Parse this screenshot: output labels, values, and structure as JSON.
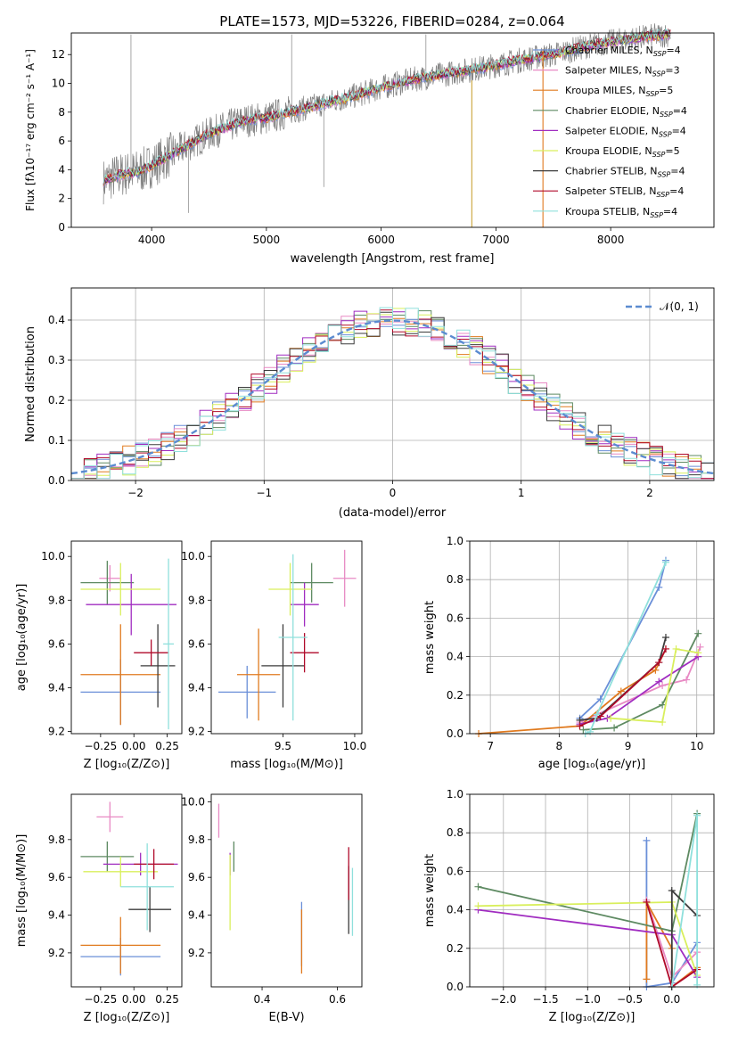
{
  "colors": [
    "#6a8fd8",
    "#e88ac4",
    "#e07a1f",
    "#5e8a62",
    "#a02cc0",
    "#d9ef5c",
    "#3b3b3b",
    "#b00a2a",
    "#8fe0dc"
  ],
  "chart_data": [
    {
      "id": "spectrum",
      "type": "line",
      "title": "PLATE=1573, MJD=53226, FIBERID=0284, z=0.064",
      "xlabel": "wavelength [Angstrom, rest frame]",
      "ylabel": "Flux [fλ10⁻¹⁷ erg cm⁻² s⁻¹ A⁻¹]",
      "xlim": [
        3300,
        8900
      ],
      "ylim": [
        0,
        13.5
      ],
      "xticks": [
        4000,
        5000,
        6000,
        7000,
        8000
      ],
      "yticks": [
        0,
        2,
        4,
        6,
        8,
        10,
        12
      ],
      "grid": false,
      "legend_position": "right",
      "legend": [
        "Chabrier MILES, N_SSP=4",
        "Salpeter MILES, N_SSP=3",
        "Kroupa MILES, N_SSP=5",
        "Chabrier ELODIE, N_SSP=4",
        "Salpeter ELODIE, N_SSP=4",
        "Kroupa ELODIE, N_SSP=5",
        "Chabrier STELIB, N_SSP=4",
        "Salpeter STELIB, N_SSP=4",
        "Kroupa STELIB, N_SSP=4"
      ],
      "data_trend": {
        "x": [
          3580,
          3700,
          3900,
          4000,
          4200,
          4500,
          4800,
          5000,
          5200,
          5500,
          5800,
          6000,
          6300,
          6600,
          6900,
          7200,
          7500,
          7800,
          8100,
          8400,
          8500
        ],
        "y": [
          3.2,
          3.6,
          3.9,
          4.3,
          5.2,
          6.5,
          7.4,
          7.6,
          8.0,
          8.6,
          9.2,
          9.7,
          10.3,
          10.7,
          11.1,
          11.6,
          12.0,
          12.6,
          13.0,
          13.3,
          13.4
        ]
      }
    },
    {
      "id": "residual-hist",
      "type": "step",
      "xlabel": "(data-model)/error",
      "ylabel": "Normed distribution",
      "xlim": [
        -2.5,
        2.5
      ],
      "ylim": [
        0,
        0.48
      ],
      "xticks": [
        -2,
        -1,
        0,
        1,
        2
      ],
      "yticks": [
        0.0,
        0.1,
        0.2,
        0.3,
        0.4
      ],
      "grid": true,
      "legend_position": "top-right",
      "legend": [
        "𝒩(0, 1)"
      ]
    },
    {
      "id": "age-vs-Z",
      "type": "errorbar",
      "xlabel": "Z [log₁₀(Z/Z⊙)]",
      "ylabel": "age  [log₁₀(age/yr)]",
      "xlim": [
        -0.47,
        0.36
      ],
      "ylim": [
        9.19,
        10.07
      ],
      "xticks": [
        -0.25,
        0.0,
        0.25
      ],
      "xticklabels": [
        "−0.25",
        "0.00",
        "0.25"
      ],
      "yticks": [
        9.2,
        9.4,
        9.6,
        9.8,
        10.0
      ],
      "points": [
        {
          "x": -0.1,
          "xerr": 0.3,
          "y": 9.38,
          "yerr": 0.15
        },
        {
          "x": -0.18,
          "xerr": 0.08,
          "y": 9.9,
          "yerr": 0.06
        },
        {
          "x": -0.1,
          "xerr": 0.3,
          "y": 9.46,
          "yerr": 0.23
        },
        {
          "x": -0.2,
          "xerr": 0.2,
          "y": 9.88,
          "yerr": 0.1
        },
        {
          "x": -0.02,
          "xerr": 0.34,
          "y": 9.78,
          "yerr": 0.14
        },
        {
          "x": -0.1,
          "xerr": 0.3,
          "y": 9.85,
          "yerr": 0.12
        },
        {
          "x": 0.18,
          "xerr": 0.13,
          "y": 9.5,
          "yerr": 0.19
        },
        {
          "x": 0.13,
          "xerr": 0.13,
          "y": 9.56,
          "yerr": 0.06
        },
        {
          "x": 0.26,
          "xerr": 0.04,
          "y": 9.6,
          "yerr": 0.39
        }
      ]
    },
    {
      "id": "age-vs-mass",
      "type": "errorbar",
      "xlabel": "mass [log₁₀(M/M⊙)]",
      "ylabel": "",
      "xlim": [
        9.0,
        10.05
      ],
      "ylim": [
        9.19,
        10.07
      ],
      "xticks": [
        9.5,
        10.0
      ],
      "xticklabels": [
        "9.5",
        "10.0"
      ],
      "yticks": [
        9.2,
        9.4,
        9.6,
        9.8,
        10.0
      ],
      "points": [
        {
          "x": 9.25,
          "xerr": 0.2,
          "y": 9.38,
          "yerr": 0.12
        },
        {
          "x": 9.93,
          "xerr": 0.08,
          "y": 9.9,
          "yerr": 0.13
        },
        {
          "x": 9.33,
          "xerr": 0.15,
          "y": 9.46,
          "yerr": 0.21
        },
        {
          "x": 9.7,
          "xerr": 0.15,
          "y": 9.88,
          "yerr": 0.09
        },
        {
          "x": 9.65,
          "xerr": 0.1,
          "y": 9.78,
          "yerr": 0.1
        },
        {
          "x": 9.55,
          "xerr": 0.15,
          "y": 9.85,
          "yerr": 0.12
        },
        {
          "x": 9.5,
          "xerr": 0.15,
          "y": 9.5,
          "yerr": 0.19
        },
        {
          "x": 9.65,
          "xerr": 0.1,
          "y": 9.56,
          "yerr": 0.09
        },
        {
          "x": 9.57,
          "xerr": 0.1,
          "y": 9.63,
          "yerr": 0.38
        }
      ]
    },
    {
      "id": "massweight-vs-age",
      "type": "line",
      "xlabel": "age  [log₁₀(age/yr)]",
      "ylabel": "mass weight",
      "xlim": [
        6.7,
        10.25
      ],
      "ylim": [
        0.0,
        1.0
      ],
      "xticks": [
        7,
        8,
        9,
        10
      ],
      "yticks": [
        0.0,
        0.2,
        0.4,
        0.6,
        0.8,
        1.0
      ],
      "grid": true,
      "series": [
        {
          "x": [
            8.3,
            8.6,
            9.45,
            9.55
          ],
          "y": [
            0.08,
            0.18,
            0.76,
            0.9
          ]
        },
        {
          "x": [
            8.3,
            9.5,
            9.85,
            10.05
          ],
          "y": [
            0.06,
            0.25,
            0.28,
            0.45
          ]
        },
        {
          "x": [
            6.83,
            8.3,
            8.9,
            9.4,
            9.55
          ],
          "y": [
            0.0,
            0.04,
            0.22,
            0.33,
            0.44
          ]
        },
        {
          "x": [
            8.35,
            8.8,
            9.5,
            10.02
          ],
          "y": [
            0.02,
            0.03,
            0.15,
            0.52
          ]
        },
        {
          "x": [
            8.3,
            8.7,
            9.45,
            10.02
          ],
          "y": [
            0.05,
            0.08,
            0.27,
            0.4
          ]
        },
        {
          "x": [
            8.75,
            9.5,
            9.7,
            10.02
          ],
          "y": [
            0.08,
            0.06,
            0.44,
            0.42
          ]
        },
        {
          "x": [
            8.3,
            8.55,
            9.45,
            9.55
          ],
          "y": [
            0.07,
            0.08,
            0.37,
            0.5
          ]
        },
        {
          "x": [
            8.3,
            8.6,
            9.45,
            9.55
          ],
          "y": [
            0.04,
            0.09,
            0.37,
            0.44
          ]
        },
        {
          "x": [
            8.38,
            8.45,
            8.55,
            9.55
          ],
          "y": [
            0.0,
            0.01,
            0.1,
            0.89
          ]
        }
      ]
    },
    {
      "id": "mass-vs-Z",
      "type": "errorbar",
      "xlabel": "Z [log₁₀(Z/Z⊙)]",
      "ylabel": "mass [log₁₀(M/M⊙)]",
      "xlim": [
        -0.47,
        0.36
      ],
      "ylim": [
        9.02,
        10.04
      ],
      "xticks": [
        -0.25,
        0.0,
        0.25
      ],
      "xticklabels": [
        "−0.25",
        "0.00",
        "0.25"
      ],
      "yticks": [
        9.2,
        9.4,
        9.6,
        9.8
      ],
      "points": [
        {
          "x": -0.1,
          "xerr": 0.3,
          "y": 9.18,
          "yerr": 0.1
        },
        {
          "x": -0.18,
          "xerr": 0.1,
          "y": 9.92,
          "yerr": 0.08
        },
        {
          "x": -0.1,
          "xerr": 0.3,
          "y": 9.24,
          "yerr": 0.15
        },
        {
          "x": -0.2,
          "xerr": 0.2,
          "y": 9.71,
          "yerr": 0.08
        },
        {
          "x": 0.05,
          "xerr": 0.28,
          "y": 9.67,
          "yerr": 0.06
        },
        {
          "x": -0.1,
          "xerr": 0.28,
          "y": 9.63,
          "yerr": 0.08
        },
        {
          "x": 0.12,
          "xerr": 0.16,
          "y": 9.43,
          "yerr": 0.12
        },
        {
          "x": 0.15,
          "xerr": 0.15,
          "y": 9.67,
          "yerr": 0.08
        },
        {
          "x": 0.1,
          "xerr": 0.2,
          "y": 9.55,
          "yerr": 0.23
        }
      ]
    },
    {
      "id": "mass-vs-EBV",
      "type": "errorbar",
      "xlabel": "E(B-V)",
      "ylabel": "",
      "xlim": [
        0.265,
        0.665
      ],
      "ylim": [
        9.02,
        10.04
      ],
      "xticks": [
        0.4,
        0.6
      ],
      "xticklabels": [
        "0.4",
        "0.6"
      ],
      "yticks": [
        9.2,
        9.4,
        9.6,
        9.8,
        10.0
      ],
      "points": [
        {
          "x": 0.505,
          "xerr": 0.0,
          "y": 9.3,
          "yerr": 0.17
        },
        {
          "x": 0.285,
          "xerr": 0.0,
          "y": 9.9,
          "yerr": 0.09
        },
        {
          "x": 0.505,
          "xerr": 0.0,
          "y": 9.26,
          "yerr": 0.17
        },
        {
          "x": 0.325,
          "xerr": 0.0,
          "y": 9.71,
          "yerr": 0.08
        },
        {
          "x": 0.315,
          "xerr": 0.0,
          "y": 9.67,
          "yerr": 0.06
        },
        {
          "x": 0.315,
          "xerr": 0.0,
          "y": 9.52,
          "yerr": 0.2
        },
        {
          "x": 0.63,
          "xerr": 0.0,
          "y": 9.48,
          "yerr": 0.18
        },
        {
          "x": 0.63,
          "xerr": 0.0,
          "y": 9.62,
          "yerr": 0.14
        },
        {
          "x": 0.64,
          "xerr": 0.0,
          "y": 9.47,
          "yerr": 0.18
        }
      ]
    },
    {
      "id": "massweight-vs-Z",
      "type": "line",
      "xlabel": "Z [log₁₀(Z/Z⊙)]",
      "ylabel": "mass weight",
      "xlim": [
        -2.4,
        0.5
      ],
      "ylim": [
        0.0,
        1.0
      ],
      "xticks": [
        -2.0,
        -1.5,
        -1.0,
        -0.5,
        0.0
      ],
      "xticklabels": [
        "−2.0",
        "−1.5",
        "−1.0",
        "−0.5",
        "0.0"
      ],
      "yticks": [
        0.0,
        0.2,
        0.4,
        0.6,
        0.8,
        1.0
      ],
      "grid": true,
      "series": [
        {
          "x": [
            -0.3,
            -0.3,
            0.0,
            0.3
          ],
          "y": [
            0.76,
            0.0,
            0.02,
            0.23
          ]
        },
        {
          "x": [
            -0.3,
            0.0,
            0.3
          ],
          "y": [
            0.45,
            0.05,
            0.18
          ]
        },
        {
          "x": [
            -0.3,
            -0.3,
            0.0,
            0.0,
            0.3
          ],
          "y": [
            0.04,
            0.44,
            0.2,
            0.0,
            0.1
          ]
        },
        {
          "x": [
            -2.3,
            0.0,
            0.3
          ],
          "y": [
            0.52,
            0.29,
            0.9
          ]
        },
        {
          "x": [
            -2.3,
            0.0,
            0.3
          ],
          "y": [
            0.4,
            0.27,
            0.05
          ]
        },
        {
          "x": [
            -2.3,
            0.0,
            0.3
          ],
          "y": [
            0.42,
            0.44,
            0.06
          ]
        },
        {
          "x": [
            0.0,
            0.0,
            0.3
          ],
          "y": [
            0.0,
            0.5,
            0.37
          ]
        },
        {
          "x": [
            -0.3,
            0.0,
            0.3
          ],
          "y": [
            0.44,
            0.0,
            0.09
          ]
        },
        {
          "x": [
            0.0,
            0.3,
            0.3
          ],
          "y": [
            0.0,
            0.89,
            0.01
          ]
        }
      ]
    }
  ]
}
